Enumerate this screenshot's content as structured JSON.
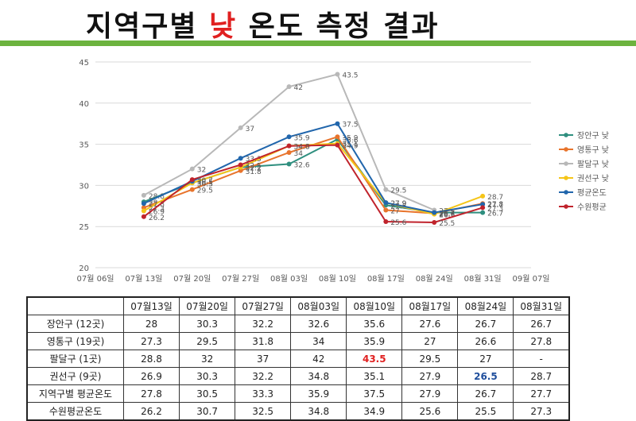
{
  "title": {
    "prefix": "지역구별",
    "highlight": "낮",
    "suffix": "온도 측정 결과"
  },
  "colors": {
    "accent_bar": "#6cb33f",
    "title_highlight": "#e02020",
    "max_value": "#e02020",
    "min_value": "#1f4e9c"
  },
  "chart_data": {
    "type": "line",
    "x_ticks": [
      "07월 06일",
      "07월 13일",
      "07월 20일",
      "07월 27일",
      "08월 03일",
      "08월 10일",
      "08월 17일",
      "08월 24일",
      "08월 31일",
      "09월 07일"
    ],
    "x_dates": [
      "2024-07-13",
      "2024-07-20",
      "2024-07-27",
      "2024-08-03",
      "2024-08-10",
      "2024-08-17",
      "2024-08-24",
      "2024-08-31"
    ],
    "ylim": [
      20,
      45
    ],
    "y_ticks": [
      20,
      25,
      30,
      35,
      40,
      45
    ],
    "legend_position": "right",
    "grid": true,
    "series": [
      {
        "name": "장안구 낮",
        "color": "#2f8f7f",
        "values": [
          28,
          30.3,
          32.2,
          32.6,
          35.6,
          27.6,
          26.7,
          26.7
        ]
      },
      {
        "name": "영통구 낮",
        "color": "#e8742c",
        "values": [
          27.3,
          29.5,
          31.8,
          34,
          35.9,
          27,
          26.6,
          27.8
        ]
      },
      {
        "name": "팔달구 낮",
        "color": "#b8b8b8",
        "values": [
          28.8,
          32,
          37,
          42,
          43.5,
          29.5,
          27,
          null
        ]
      },
      {
        "name": "권선구 낮",
        "color": "#f5c518",
        "values": [
          26.9,
          30.3,
          32.2,
          34.8,
          35.1,
          27.9,
          26.5,
          28.7
        ]
      },
      {
        "name": "평균온도",
        "color": "#2166ac",
        "values": [
          27.8,
          30.5,
          33.3,
          35.9,
          37.5,
          27.9,
          26.7,
          27.7
        ]
      },
      {
        "name": "수원평균",
        "color": "#c0232c",
        "values": [
          26.2,
          30.7,
          32.5,
          34.8,
          34.9,
          25.6,
          25.5,
          27.3
        ]
      }
    ],
    "point_label_colors": {
      "장안구 낮": "#2f8f7f",
      "영통구 낮": "#e8742c",
      "팔달구 낮": "#b8b8b8",
      "권선구 낮": "#f5c518",
      "평균온도": "#2166ac",
      "수원평균": "#c0232c"
    }
  },
  "table": {
    "headers": [
      "",
      "07월13일",
      "07월20일",
      "07월27일",
      "08월03일",
      "08월10일",
      "08월17일",
      "08월24일",
      "08월31일"
    ],
    "rows": [
      {
        "label": "장안구 (12곳)",
        "cells": [
          "28",
          "30.3",
          "32.2",
          "32.6",
          "35.6",
          "27.6",
          "26.7",
          "26.7"
        ]
      },
      {
        "label": "영통구 (19곳)",
        "cells": [
          "27.3",
          "29.5",
          "31.8",
          "34",
          "35.9",
          "27",
          "26.6",
          "27.8"
        ]
      },
      {
        "label": "팔달구 (1곳)",
        "cells": [
          "28.8",
          "32",
          "37",
          "42",
          "43.5",
          "29.5",
          "27",
          "-"
        ]
      },
      {
        "label": "권선구 (9곳)",
        "cells": [
          "26.9",
          "30.3",
          "32.2",
          "34.8",
          "35.1",
          "27.9",
          "26.5",
          "28.7"
        ]
      },
      {
        "label": "지역구별 평균온도",
        "cells": [
          "27.8",
          "30.5",
          "33.3",
          "35.9",
          "37.5",
          "27.9",
          "26.7",
          "27.7"
        ]
      },
      {
        "label": "수원평균온도",
        "cells": [
          "26.2",
          "30.7",
          "32.5",
          "34.8",
          "34.9",
          "25.6",
          "25.5",
          "27.3"
        ]
      }
    ],
    "highlights": {
      "max": {
        "row": 2,
        "col": 4
      },
      "min": {
        "row": 3,
        "col": 6
      }
    }
  }
}
